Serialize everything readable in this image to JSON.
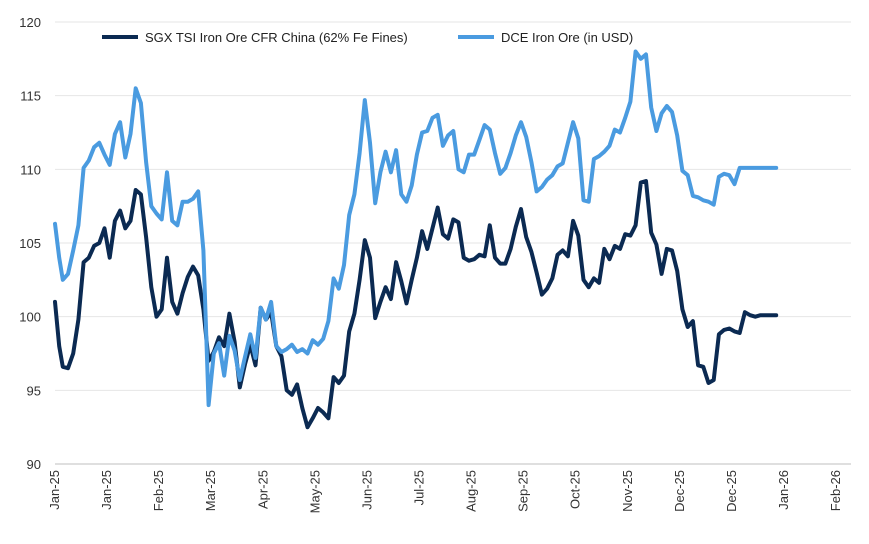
{
  "chart_data": {
    "type": "line",
    "title": "",
    "xlabel": "",
    "ylabel": "",
    "ylim": [
      90,
      120
    ],
    "yticks": [
      "90",
      "95",
      "100",
      "105",
      "110",
      "115",
      "120"
    ],
    "xlim": [
      0,
      13.85
    ],
    "grid": true,
    "legend_position": "top",
    "categories": [
      "Jan-25",
      "Jan-25",
      "Feb-25",
      "Mar-25",
      "Apr-25",
      "May-25",
      "Jun-25",
      "Jul-25",
      "Aug-25",
      "Sep-25",
      "Oct-25",
      "Nov-25",
      "Dec-25",
      "Dec-25",
      "Jan-26",
      "Feb-26"
    ],
    "category_positions": [
      0,
      1,
      2,
      3,
      4,
      5,
      6,
      7,
      8,
      9,
      10,
      11,
      12,
      13,
      14,
      15
    ],
    "series": [
      {
        "name": "SGX TSI Iron Ore CFR China (62% Fe Fines)",
        "color": "#0b2a52",
        "x": [
          0.0,
          0.08,
          0.15,
          0.25,
          0.35,
          0.45,
          0.55,
          0.65,
          0.75,
          0.85,
          0.95,
          1.05,
          1.15,
          1.25,
          1.35,
          1.45,
          1.55,
          1.65,
          1.75,
          1.85,
          1.95,
          2.05,
          2.15,
          2.25,
          2.35,
          2.45,
          2.55,
          2.65,
          2.75,
          2.85,
          2.95,
          3.05,
          3.15,
          3.25,
          3.35,
          3.45,
          3.55,
          3.65,
          3.75,
          3.85,
          3.95,
          4.05,
          4.15,
          4.25,
          4.35,
          4.45,
          4.55,
          4.65,
          4.75,
          4.85,
          4.95,
          5.05,
          5.15,
          5.25,
          5.35,
          5.45,
          5.55,
          5.65,
          5.75,
          5.85,
          5.95,
          6.05,
          6.15,
          6.25,
          6.35,
          6.45,
          6.55,
          6.65,
          6.75,
          6.85,
          6.95,
          7.05,
          7.15,
          7.25,
          7.35,
          7.45,
          7.55,
          7.65,
          7.75,
          7.85,
          7.95,
          8.05,
          8.15,
          8.25,
          8.35,
          8.45,
          8.55,
          8.65,
          8.75,
          8.85,
          8.95,
          9.05,
          9.15,
          9.25,
          9.35,
          9.45,
          9.55,
          9.65,
          9.75,
          9.85,
          9.95,
          10.05,
          10.15,
          10.25,
          10.35,
          10.45,
          10.55,
          10.65,
          10.75,
          10.85,
          10.95,
          11.05,
          11.15,
          11.25,
          11.35,
          11.45,
          11.55,
          11.65,
          11.75,
          11.85,
          11.95,
          12.05,
          12.15,
          12.25,
          12.35,
          12.45,
          12.55,
          12.65,
          12.75,
          12.85,
          12.95,
          13.05,
          13.15,
          13.25,
          13.35,
          13.45,
          13.55,
          13.65,
          13.75,
          13.85
        ],
        "y": [
          101.0,
          98.0,
          96.6,
          96.5,
          97.5,
          99.8,
          103.7,
          104.0,
          104.8,
          105.0,
          106.0,
          104.0,
          106.5,
          107.2,
          106.0,
          106.5,
          108.6,
          108.3,
          105.4,
          102.0,
          100.0,
          100.5,
          104.0,
          101.0,
          100.2,
          101.6,
          102.7,
          103.4,
          102.8,
          100.5,
          97.0,
          97.6,
          98.6,
          98.0,
          100.2,
          98.3,
          95.2,
          96.8,
          98.1,
          96.7,
          100.6,
          99.8,
          100.3,
          98.0,
          97.3,
          95.0,
          94.7,
          95.4,
          93.8,
          92.5,
          93.1,
          93.8,
          93.5,
          93.1,
          95.9,
          95.5,
          96.0,
          99.0,
          100.2,
          102.5,
          105.2,
          104.0,
          99.9,
          101.0,
          102.0,
          101.2,
          103.7,
          102.4,
          100.9,
          102.5,
          104.0,
          105.8,
          104.6,
          106.0,
          107.4,
          105.6,
          105.3,
          106.6,
          106.4,
          104.0,
          103.8,
          103.9,
          104.2,
          104.1,
          106.2,
          104.0,
          103.6,
          103.6,
          104.6,
          106.1,
          107.3,
          105.4,
          104.4,
          103.0,
          101.5,
          101.9,
          102.6,
          104.2,
          104.5,
          104.1,
          106.5,
          105.5,
          102.5,
          102.0,
          102.6,
          102.3,
          104.6,
          103.9,
          104.8,
          104.6,
          105.6,
          105.5,
          106.2,
          109.1,
          109.2,
          105.7,
          104.9,
          102.9,
          104.6,
          104.5,
          103.1,
          100.5,
          99.3,
          99.7,
          96.7,
          96.6,
          95.5,
          95.7,
          98.8,
          99.1,
          99.2,
          99.0,
          98.9,
          100.3,
          100.1,
          100.0,
          100.1,
          100.1,
          100.1,
          100.1
        ],
        "x_note": "positions in category units (0 = Jan-25 … 15 = Feb-26)"
      },
      {
        "name": "DCE Iron Ore (in USD)",
        "color": "#4a9be0",
        "x": [
          0.0,
          0.08,
          0.15,
          0.25,
          0.35,
          0.45,
          0.55,
          0.65,
          0.75,
          0.85,
          0.95,
          1.05,
          1.15,
          1.25,
          1.35,
          1.45,
          1.55,
          1.65,
          1.75,
          1.85,
          1.95,
          2.05,
          2.15,
          2.25,
          2.35,
          2.45,
          2.55,
          2.65,
          2.75,
          2.85,
          2.95,
          3.05,
          3.15,
          3.25,
          3.35,
          3.45,
          3.55,
          3.65,
          3.75,
          3.85,
          3.95,
          4.05,
          4.15,
          4.25,
          4.35,
          4.45,
          4.55,
          4.65,
          4.75,
          4.85,
          4.95,
          5.05,
          5.15,
          5.25,
          5.35,
          5.45,
          5.55,
          5.65,
          5.75,
          5.85,
          5.95,
          6.05,
          6.15,
          6.25,
          6.35,
          6.45,
          6.55,
          6.65,
          6.75,
          6.85,
          6.95,
          7.05,
          7.15,
          7.25,
          7.35,
          7.45,
          7.55,
          7.65,
          7.75,
          7.85,
          7.95,
          8.05,
          8.15,
          8.25,
          8.35,
          8.45,
          8.55,
          8.65,
          8.75,
          8.85,
          8.95,
          9.05,
          9.15,
          9.25,
          9.35,
          9.45,
          9.55,
          9.65,
          9.75,
          9.85,
          9.95,
          10.05,
          10.15,
          10.25,
          10.35,
          10.45,
          10.55,
          10.65,
          10.75,
          10.85,
          10.95,
          11.05,
          11.15,
          11.25,
          11.35,
          11.45,
          11.55,
          11.65,
          11.75,
          11.85,
          11.95,
          12.05,
          12.15,
          12.25,
          12.35,
          12.45,
          12.55,
          12.65,
          12.75,
          12.85,
          12.95,
          13.05,
          13.15,
          13.25,
          13.35,
          13.45,
          13.55,
          13.65,
          13.75,
          13.85
        ],
        "y": [
          106.3,
          104.0,
          102.5,
          102.9,
          104.5,
          106.2,
          110.1,
          110.6,
          111.5,
          111.8,
          111.0,
          110.3,
          112.4,
          113.2,
          110.8,
          112.4,
          115.5,
          114.5,
          110.5,
          107.5,
          107.0,
          106.6,
          109.8,
          106.5,
          106.2,
          107.8,
          107.8,
          108.0,
          108.5,
          104.5,
          94.0,
          97.5,
          98.2,
          96.0,
          98.7,
          97.7,
          95.7,
          97.3,
          98.8,
          97.2,
          100.6,
          99.8,
          101.0,
          98.0,
          97.6,
          97.8,
          98.1,
          97.6,
          97.8,
          97.5,
          98.4,
          98.1,
          98.5,
          99.7,
          102.6,
          101.9,
          103.5,
          106.9,
          108.3,
          111.1,
          114.7,
          111.8,
          107.7,
          109.8,
          111.2,
          109.8,
          111.3,
          108.3,
          107.8,
          108.9,
          111.0,
          112.5,
          112.6,
          113.5,
          113.7,
          111.6,
          112.3,
          112.6,
          110.0,
          109.8,
          111.0,
          111.0,
          112.0,
          113.0,
          112.7,
          111.1,
          109.7,
          110.1,
          111.1,
          112.3,
          113.2,
          112.2,
          110.5,
          108.5,
          108.8,
          109.3,
          109.6,
          110.2,
          110.4,
          111.8,
          113.2,
          112.1,
          107.9,
          107.8,
          110.7,
          110.9,
          111.2,
          111.6,
          112.7,
          112.5,
          113.5,
          114.6,
          118.0,
          117.5,
          117.8,
          114.2,
          112.6,
          113.8,
          114.3,
          113.9,
          112.3,
          109.9,
          109.6,
          108.2,
          108.1,
          107.9,
          107.8,
          107.6,
          109.5,
          109.7,
          109.6,
          109.0,
          110.1,
          110.1,
          110.1,
          110.1,
          110.1,
          110.1,
          110.1,
          110.1
        ],
        "x_note": "positions in category units (0 = Jan-25 … 15 = Feb-26)"
      }
    ]
  }
}
